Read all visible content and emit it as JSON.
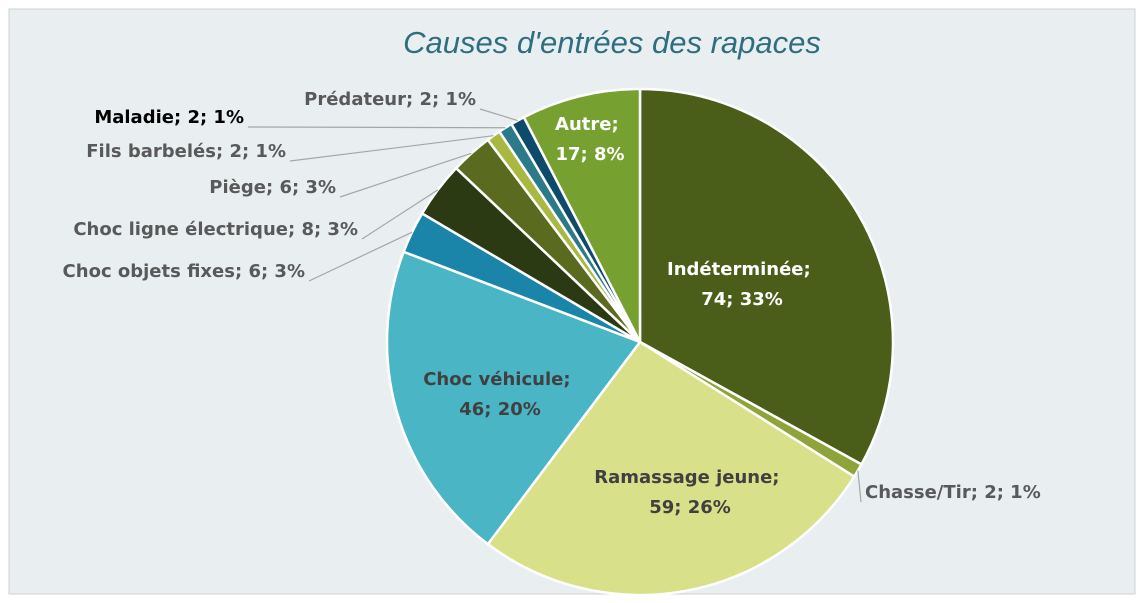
{
  "chart_data": {
    "type": "pie",
    "title": "Causes d'entrées des rapaces",
    "categories": [
      "Indéterminée",
      "Chasse/Tir",
      "Ramassage jeune",
      "Choc véhicule",
      "Choc objets fixes",
      "Choc ligne électrique",
      "Piège",
      "Fils barbelés",
      "Maladie",
      "Prédateur",
      "Autre"
    ],
    "values": [
      74,
      2,
      59,
      46,
      6,
      8,
      6,
      2,
      2,
      2,
      17
    ],
    "value_labels": [
      "74; 33%",
      "2; 1%",
      "59; 26%",
      "46; 20%",
      "6; 3%",
      "8; 3%",
      "6; 3%",
      "2; 1%",
      "2; 1%",
      "2; 1%",
      "17; 8%"
    ],
    "label_separator": "; ",
    "colors": [
      "#4a5e1a",
      "#8ea33a",
      "#d9e08a",
      "#4ab5c4",
      "#1a85a8",
      "#2b3a12",
      "#5a6a1e",
      "#a8b840",
      "#2a7a8a",
      "#0e4a6a",
      "#76a030"
    ]
  }
}
